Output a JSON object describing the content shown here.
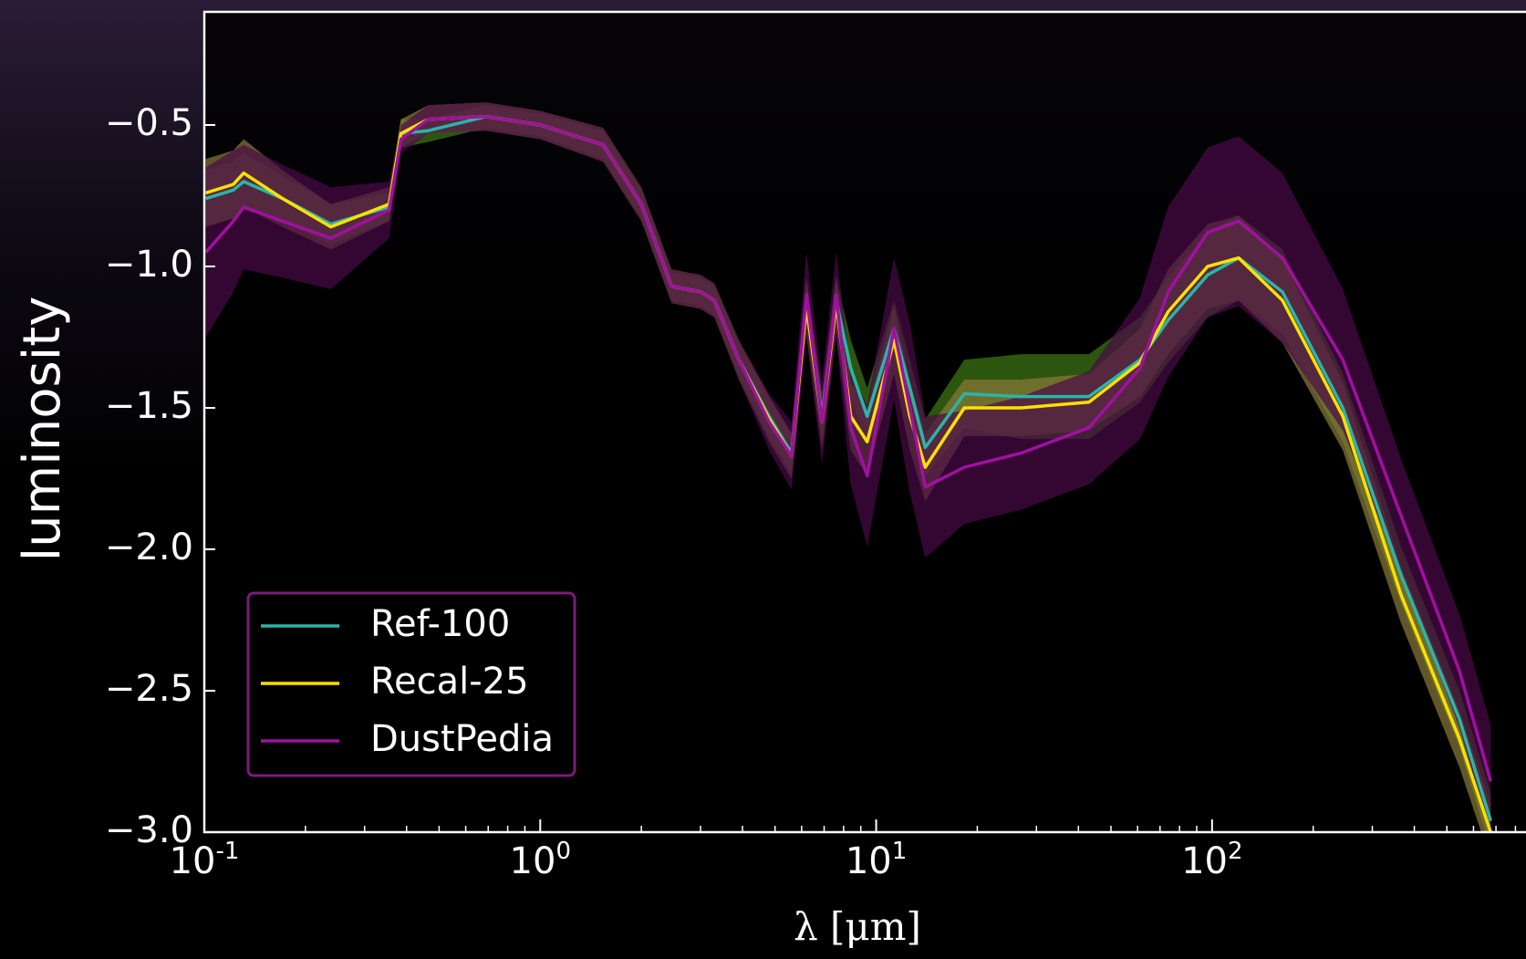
{
  "chart_data": {
    "type": "line",
    "xlabel": "λ [μm]",
    "ylabel": "luminosity",
    "xscale": "log",
    "xlim": [
      0.1,
      860
    ],
    "ylim": [
      -3.0,
      -0.1
    ],
    "xticks": [
      {
        "value": 0.1,
        "label": "10",
        "exponent": "-1"
      },
      {
        "value": 1,
        "label": "10",
        "exponent": "0"
      },
      {
        "value": 10,
        "label": "10",
        "exponent": "1"
      },
      {
        "value": 100,
        "label": "10",
        "exponent": "2"
      }
    ],
    "xminor": [
      0.2,
      0.3,
      0.4,
      0.5,
      0.6,
      0.7,
      0.8,
      0.9,
      2,
      3,
      4,
      5,
      6,
      7,
      8,
      9,
      20,
      30,
      40,
      50,
      60,
      70,
      80,
      90,
      200,
      300,
      400,
      500,
      600,
      700,
      800
    ],
    "yticks": [
      {
        "value": -0.5,
        "label": "−0.5"
      },
      {
        "value": -1.0,
        "label": "−1.0"
      },
      {
        "value": -1.5,
        "label": "−1.5"
      },
      {
        "value": -2.0,
        "label": "−2.0"
      },
      {
        "value": -2.5,
        "label": "−2.5"
      },
      {
        "value": -3.0,
        "label": "−3.0"
      }
    ],
    "legend": "lower left",
    "x": [
      0.101,
      0.122,
      0.131,
      0.171,
      0.238,
      0.355,
      0.385,
      0.464,
      0.69,
      1.0,
      1.54,
      2.0,
      2.46,
      3.0,
      3.3,
      3.9,
      4.8,
      5.6,
      6.2,
      6.9,
      7.6,
      8.4,
      9.4,
      11.3,
      12.6,
      14,
      18.3,
      27,
      43,
      61,
      74,
      97,
      120,
      162,
      245,
      365,
      545,
      675
    ],
    "series": [
      {
        "name": "Ref-100",
        "color": "#2ab5a8",
        "band_color": "#3f7a12",
        "values": [
          -0.76,
          -0.73,
          -0.7,
          -0.76,
          -0.85,
          -0.79,
          -0.53,
          -0.52,
          -0.47,
          -0.5,
          -0.57,
          -0.78,
          -1.07,
          -1.09,
          -1.12,
          -1.33,
          -1.53,
          -1.66,
          -1.12,
          -1.53,
          -1.12,
          -1.36,
          -1.53,
          -1.22,
          -1.43,
          -1.64,
          -1.45,
          -1.46,
          -1.46,
          -1.33,
          -1.19,
          -1.03,
          -0.97,
          -1.09,
          -1.5,
          -2.09,
          -2.6,
          -2.96
        ],
        "error": [
          0.1,
          0.1,
          0.1,
          0.08,
          0.07,
          0.05,
          0.05,
          0.04,
          0.04,
          0.04,
          0.05,
          0.05,
          0.05,
          0.05,
          0.05,
          0.06,
          0.07,
          0.07,
          0.08,
          0.08,
          0.08,
          0.1,
          0.1,
          0.1,
          0.1,
          0.1,
          0.12,
          0.15,
          0.15,
          0.15,
          0.15,
          0.15,
          0.15,
          0.15,
          0.12,
          0.1,
          0.1,
          0.1
        ]
      },
      {
        "name": "Recal-25",
        "color": "#ffe000",
        "band_color": "#8a7a3a",
        "values": [
          -0.74,
          -0.71,
          -0.67,
          -0.76,
          -0.86,
          -0.78,
          -0.53,
          -0.48,
          -0.47,
          -0.5,
          -0.57,
          -0.78,
          -1.07,
          -1.09,
          -1.12,
          -1.33,
          -1.54,
          -1.67,
          -1.14,
          -1.55,
          -1.13,
          -1.53,
          -1.62,
          -1.26,
          -1.53,
          -1.71,
          -1.5,
          -1.5,
          -1.48,
          -1.34,
          -1.16,
          -1.0,
          -0.97,
          -1.12,
          -1.53,
          -2.16,
          -2.67,
          -3.0
        ],
        "error": [
          0.12,
          0.12,
          0.12,
          0.1,
          0.08,
          0.06,
          0.05,
          0.05,
          0.05,
          0.05,
          0.06,
          0.06,
          0.06,
          0.06,
          0.06,
          0.07,
          0.08,
          0.08,
          0.1,
          0.1,
          0.1,
          0.12,
          0.12,
          0.12,
          0.12,
          0.12,
          0.1,
          0.1,
          0.1,
          0.12,
          0.15,
          0.15,
          0.15,
          0.15,
          0.12,
          0.1,
          0.1,
          0.1
        ]
      },
      {
        "name": "DustPedia",
        "color": "#a010a0",
        "band_color": "#4a0a48",
        "values": [
          -0.95,
          -0.84,
          -0.79,
          -0.84,
          -0.9,
          -0.8,
          -0.55,
          -0.48,
          -0.47,
          -0.5,
          -0.57,
          -0.78,
          -1.07,
          -1.09,
          -1.12,
          -1.33,
          -1.55,
          -1.67,
          -1.1,
          -1.55,
          -1.1,
          -1.57,
          -1.74,
          -1.22,
          -1.5,
          -1.78,
          -1.71,
          -1.66,
          -1.57,
          -1.36,
          -1.09,
          -0.88,
          -0.84,
          -0.97,
          -1.33,
          -1.88,
          -2.43,
          -2.82
        ],
        "error": [
          0.3,
          0.25,
          0.22,
          0.2,
          0.18,
          0.1,
          0.05,
          0.05,
          0.05,
          0.05,
          0.06,
          0.06,
          0.06,
          0.06,
          0.06,
          0.07,
          0.1,
          0.12,
          0.15,
          0.15,
          0.15,
          0.2,
          0.25,
          0.25,
          0.3,
          0.25,
          0.2,
          0.2,
          0.2,
          0.25,
          0.3,
          0.3,
          0.3,
          0.3,
          0.25,
          0.2,
          0.2,
          0.2
        ]
      }
    ]
  }
}
